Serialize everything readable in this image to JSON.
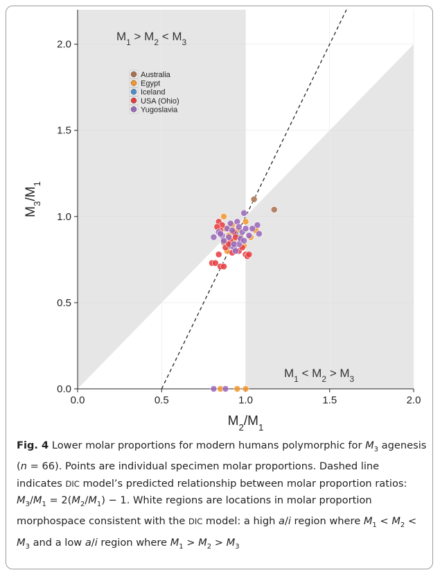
{
  "chart_data": {
    "type": "scatter",
    "xlabel": "M2/M1",
    "ylabel": "M3/M1",
    "xlim": [
      0,
      2
    ],
    "ylim": [
      0,
      2.2
    ],
    "xticks": [
      "0.0",
      "0.5",
      "1.0",
      "1.5",
      "2.0"
    ],
    "yticks": [
      "0.0",
      "0.5",
      "1.0",
      "1.5",
      "2.0"
    ],
    "grid": true,
    "legend_position": "top-left",
    "region_labels": [
      "M1 > M2 < M3",
      "M1 < M2 > M3"
    ],
    "reference_line": {
      "equation": "y = 2x - 1",
      "style": "dashed"
    },
    "series": [
      {
        "name": "Australia",
        "color": "#a9714f",
        "points": [
          [
            1.05,
            1.1
          ],
          [
            1.17,
            1.04
          ],
          [
            0.87,
            0.85
          ],
          [
            0.97,
            0.88
          ]
        ]
      },
      {
        "name": "Egypt",
        "color": "#f4962a",
        "points": [
          [
            0.87,
            1.0
          ],
          [
            0.88,
            0.93
          ],
          [
            0.92,
            0.95
          ],
          [
            1.0,
            0.97
          ],
          [
            0.9,
            0.89
          ],
          [
            0.95,
            0.92
          ],
          [
            0.99,
            0.83
          ],
          [
            1.03,
            0.88
          ],
          [
            1.06,
            0.92
          ],
          [
            0.93,
            0.86
          ],
          [
            0.85,
            0.0
          ],
          [
            0.95,
            0.0
          ],
          [
            1.0,
            0.0
          ],
          [
            0.89,
            0.8
          ]
        ]
      },
      {
        "name": "Iceland",
        "color": "#4f8cc9",
        "points": [
          [
            0.91,
            0.83
          ],
          [
            0.94,
            0.9
          ]
        ]
      },
      {
        "name": "USA (Ohio)",
        "color": "#e53b3e",
        "points": [
          [
            0.8,
            0.73
          ],
          [
            0.82,
            0.73
          ],
          [
            0.84,
            0.78
          ],
          [
            0.85,
            0.71
          ],
          [
            0.87,
            0.71
          ],
          [
            0.84,
            0.97
          ],
          [
            0.86,
            0.95
          ],
          [
            0.85,
            0.92
          ],
          [
            0.88,
            0.82
          ],
          [
            0.91,
            0.86
          ],
          [
            0.93,
            0.91
          ],
          [
            0.96,
            0.8
          ],
          [
            0.98,
            0.82
          ],
          [
            1.0,
            0.78
          ],
          [
            1.01,
            0.77
          ],
          [
            0.9,
            0.84
          ],
          [
            0.94,
            0.88
          ],
          [
            0.83,
            0.94
          ],
          [
            0.92,
            0.79
          ],
          [
            1.02,
            0.78
          ]
        ]
      },
      {
        "name": "Yugoslavia",
        "color": "#9966b8",
        "points": [
          [
            0.81,
            0.88
          ],
          [
            0.84,
            0.91
          ],
          [
            0.86,
            0.89
          ],
          [
            0.89,
            0.93
          ],
          [
            0.95,
            0.97
          ],
          [
            0.99,
            1.02
          ],
          [
            1.07,
            0.95
          ],
          [
            1.08,
            0.9
          ],
          [
            1.02,
            0.89
          ],
          [
            0.93,
            0.82
          ],
          [
            0.96,
            0.84
          ],
          [
            0.98,
            0.91
          ],
          [
            0.94,
            0.8
          ],
          [
            0.97,
            0.87
          ],
          [
            0.81,
            0.0
          ],
          [
            0.88,
            0.0
          ],
          [
            0.9,
            0.88
          ],
          [
            1.04,
            0.93
          ],
          [
            0.85,
            0.9
          ],
          [
            0.92,
            0.92
          ],
          [
            0.96,
            0.94
          ],
          [
            0.99,
            0.86
          ],
          [
            0.87,
            0.86
          ],
          [
            0.91,
            0.96
          ],
          [
            1.0,
            0.93
          ],
          [
            0.93,
            0.84
          ]
        ]
      }
    ]
  },
  "caption": {
    "label": "Fig. 4",
    "parts": [
      {
        "t": " Lower molar proportions for modern humans polymorphic for "
      },
      {
        "t": "M",
        "i": true
      },
      {
        "t": "3",
        "sub": true
      },
      {
        "t": " agenesis ("
      },
      {
        "t": "n",
        "i": true
      },
      {
        "t": " = 66). Points are individual specimen molar proportions. Dashed line indicates "
      },
      {
        "t": "DIC",
        "sc": true
      },
      {
        "t": " model’s predicted relationship between molar proportion ratios: "
      },
      {
        "t": "M",
        "i": true
      },
      {
        "t": "3",
        "sub": true
      },
      {
        "t": "/"
      },
      {
        "t": "M",
        "i": true
      },
      {
        "t": "1",
        "sub": true
      },
      {
        "t": " = 2("
      },
      {
        "t": "M",
        "i": true
      },
      {
        "t": "2",
        "sub": true
      },
      {
        "t": "/"
      },
      {
        "t": "M",
        "i": true
      },
      {
        "t": "1",
        "sub": true
      },
      {
        "t": ") − 1. White regions are locations in molar proportion morphospace consistent with the "
      },
      {
        "t": "DIC",
        "sc": true
      },
      {
        "t": " model: a high "
      },
      {
        "t": "a",
        "i": true
      },
      {
        "t": "/"
      },
      {
        "t": "i",
        "i": true
      },
      {
        "t": " region where "
      },
      {
        "t": "M",
        "i": true
      },
      {
        "t": "1",
        "sub": true
      },
      {
        "t": " < "
      },
      {
        "t": "M",
        "i": true
      },
      {
        "t": "2",
        "sub": true
      },
      {
        "t": " < "
      },
      {
        "t": "M",
        "i": true
      },
      {
        "t": "3",
        "sub": true
      },
      {
        "t": " and a low "
      },
      {
        "t": "a",
        "i": true
      },
      {
        "t": "/"
      },
      {
        "t": "i",
        "i": true
      },
      {
        "t": " region where "
      },
      {
        "t": "M",
        "i": true
      },
      {
        "t": "1",
        "sub": true
      },
      {
        "t": " > "
      },
      {
        "t": "M",
        "i": true
      },
      {
        "t": "2",
        "sub": true
      },
      {
        "t": " > "
      },
      {
        "t": "M",
        "i": true
      },
      {
        "t": "3",
        "sub": true
      }
    ]
  }
}
